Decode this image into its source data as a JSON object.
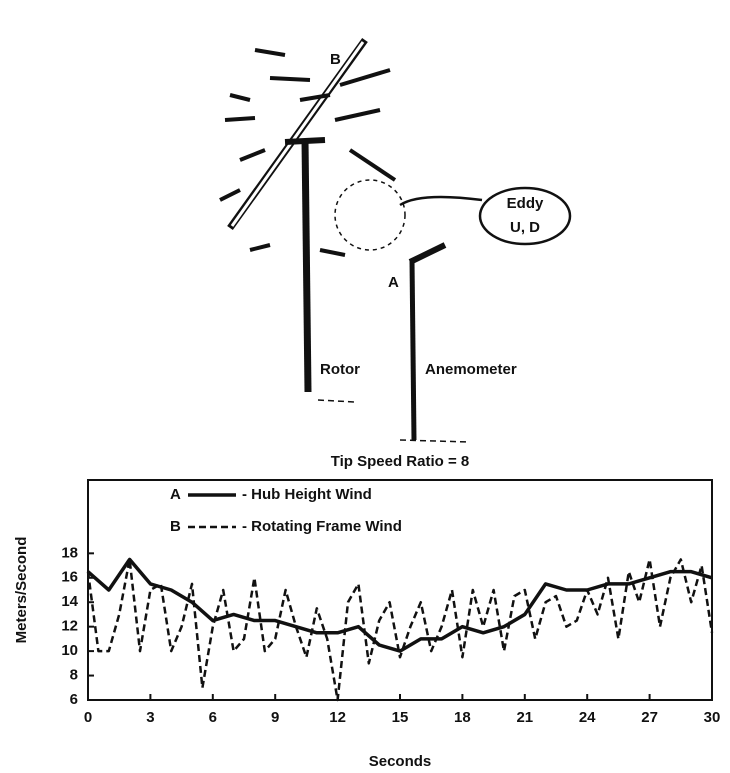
{
  "chart_data": {
    "type": "line",
    "title": "Tip Speed Ratio = 8",
    "x_label": "Seconds",
    "y_label": "Meters/Second",
    "xlim": [
      0,
      30
    ],
    "xticks": [
      0,
      3,
      6,
      9,
      12,
      15,
      18,
      21,
      24,
      27,
      30
    ],
    "ylim": [
      6,
      24
    ],
    "yticks": [
      6,
      8,
      10,
      12,
      14,
      16,
      18
    ],
    "annotations": {
      "rotor": "Rotor",
      "anemometer": "Anemometer",
      "blade": "B",
      "point": "A",
      "eddy": "Eddy",
      "eddy_components": "U, D"
    },
    "series": [
      {
        "name": "- Hub Height Wind",
        "key": "A",
        "color": "#111111",
        "dash": false,
        "x": [
          0,
          1,
          2,
          3,
          4,
          5,
          6,
          7,
          8,
          9,
          10,
          11,
          12,
          13,
          14,
          15,
          16,
          17,
          18,
          19,
          20,
          21,
          22,
          23,
          24,
          25,
          26,
          27,
          28,
          29,
          30
        ],
        "values": [
          16.5,
          15,
          17.5,
          15.5,
          15,
          14,
          12.5,
          13,
          12.5,
          12.5,
          12,
          11.5,
          11.5,
          12,
          10.5,
          10,
          11,
          11,
          12,
          11.5,
          12,
          13,
          15.5,
          15,
          15,
          15.5,
          15.5,
          16,
          16.5,
          16.5,
          16
        ]
      },
      {
        "name": "- Rotating Frame Wind",
        "key": "B",
        "color": "#111111",
        "dash": true,
        "x": [
          0,
          0.5,
          1,
          1.5,
          2,
          2.5,
          3,
          3.5,
          4,
          4.5,
          5,
          5.5,
          6,
          6.5,
          7,
          7.5,
          8,
          8.5,
          9,
          9.5,
          10,
          10.5,
          11,
          11.5,
          12,
          12.5,
          13,
          13.5,
          14,
          14.5,
          15,
          15.5,
          16,
          16.5,
          17,
          17.5,
          18,
          18.5,
          19,
          19.5,
          20,
          20.5,
          21,
          21.5,
          22,
          22.5,
          23,
          23.5,
          24,
          24.5,
          25,
          25.5,
          26,
          26.5,
          27,
          27.5,
          28,
          28.5,
          29,
          29.5,
          30
        ],
        "values": [
          16.5,
          10,
          10,
          13,
          17.5,
          10,
          15,
          15.5,
          10,
          12,
          15.5,
          7,
          12,
          15,
          10,
          11,
          16,
          10,
          11,
          15,
          12,
          9.5,
          13.5,
          11,
          6,
          14,
          15.5,
          9,
          12.5,
          14,
          9.5,
          12,
          14,
          10,
          12,
          15,
          9.5,
          15,
          12,
          15,
          10,
          14.5,
          15,
          11,
          14,
          14.5,
          12,
          12.5,
          15,
          13,
          16,
          11,
          16.5,
          14,
          17.5,
          12,
          16,
          17.5,
          14,
          17,
          11.5
        ]
      }
    ]
  }
}
